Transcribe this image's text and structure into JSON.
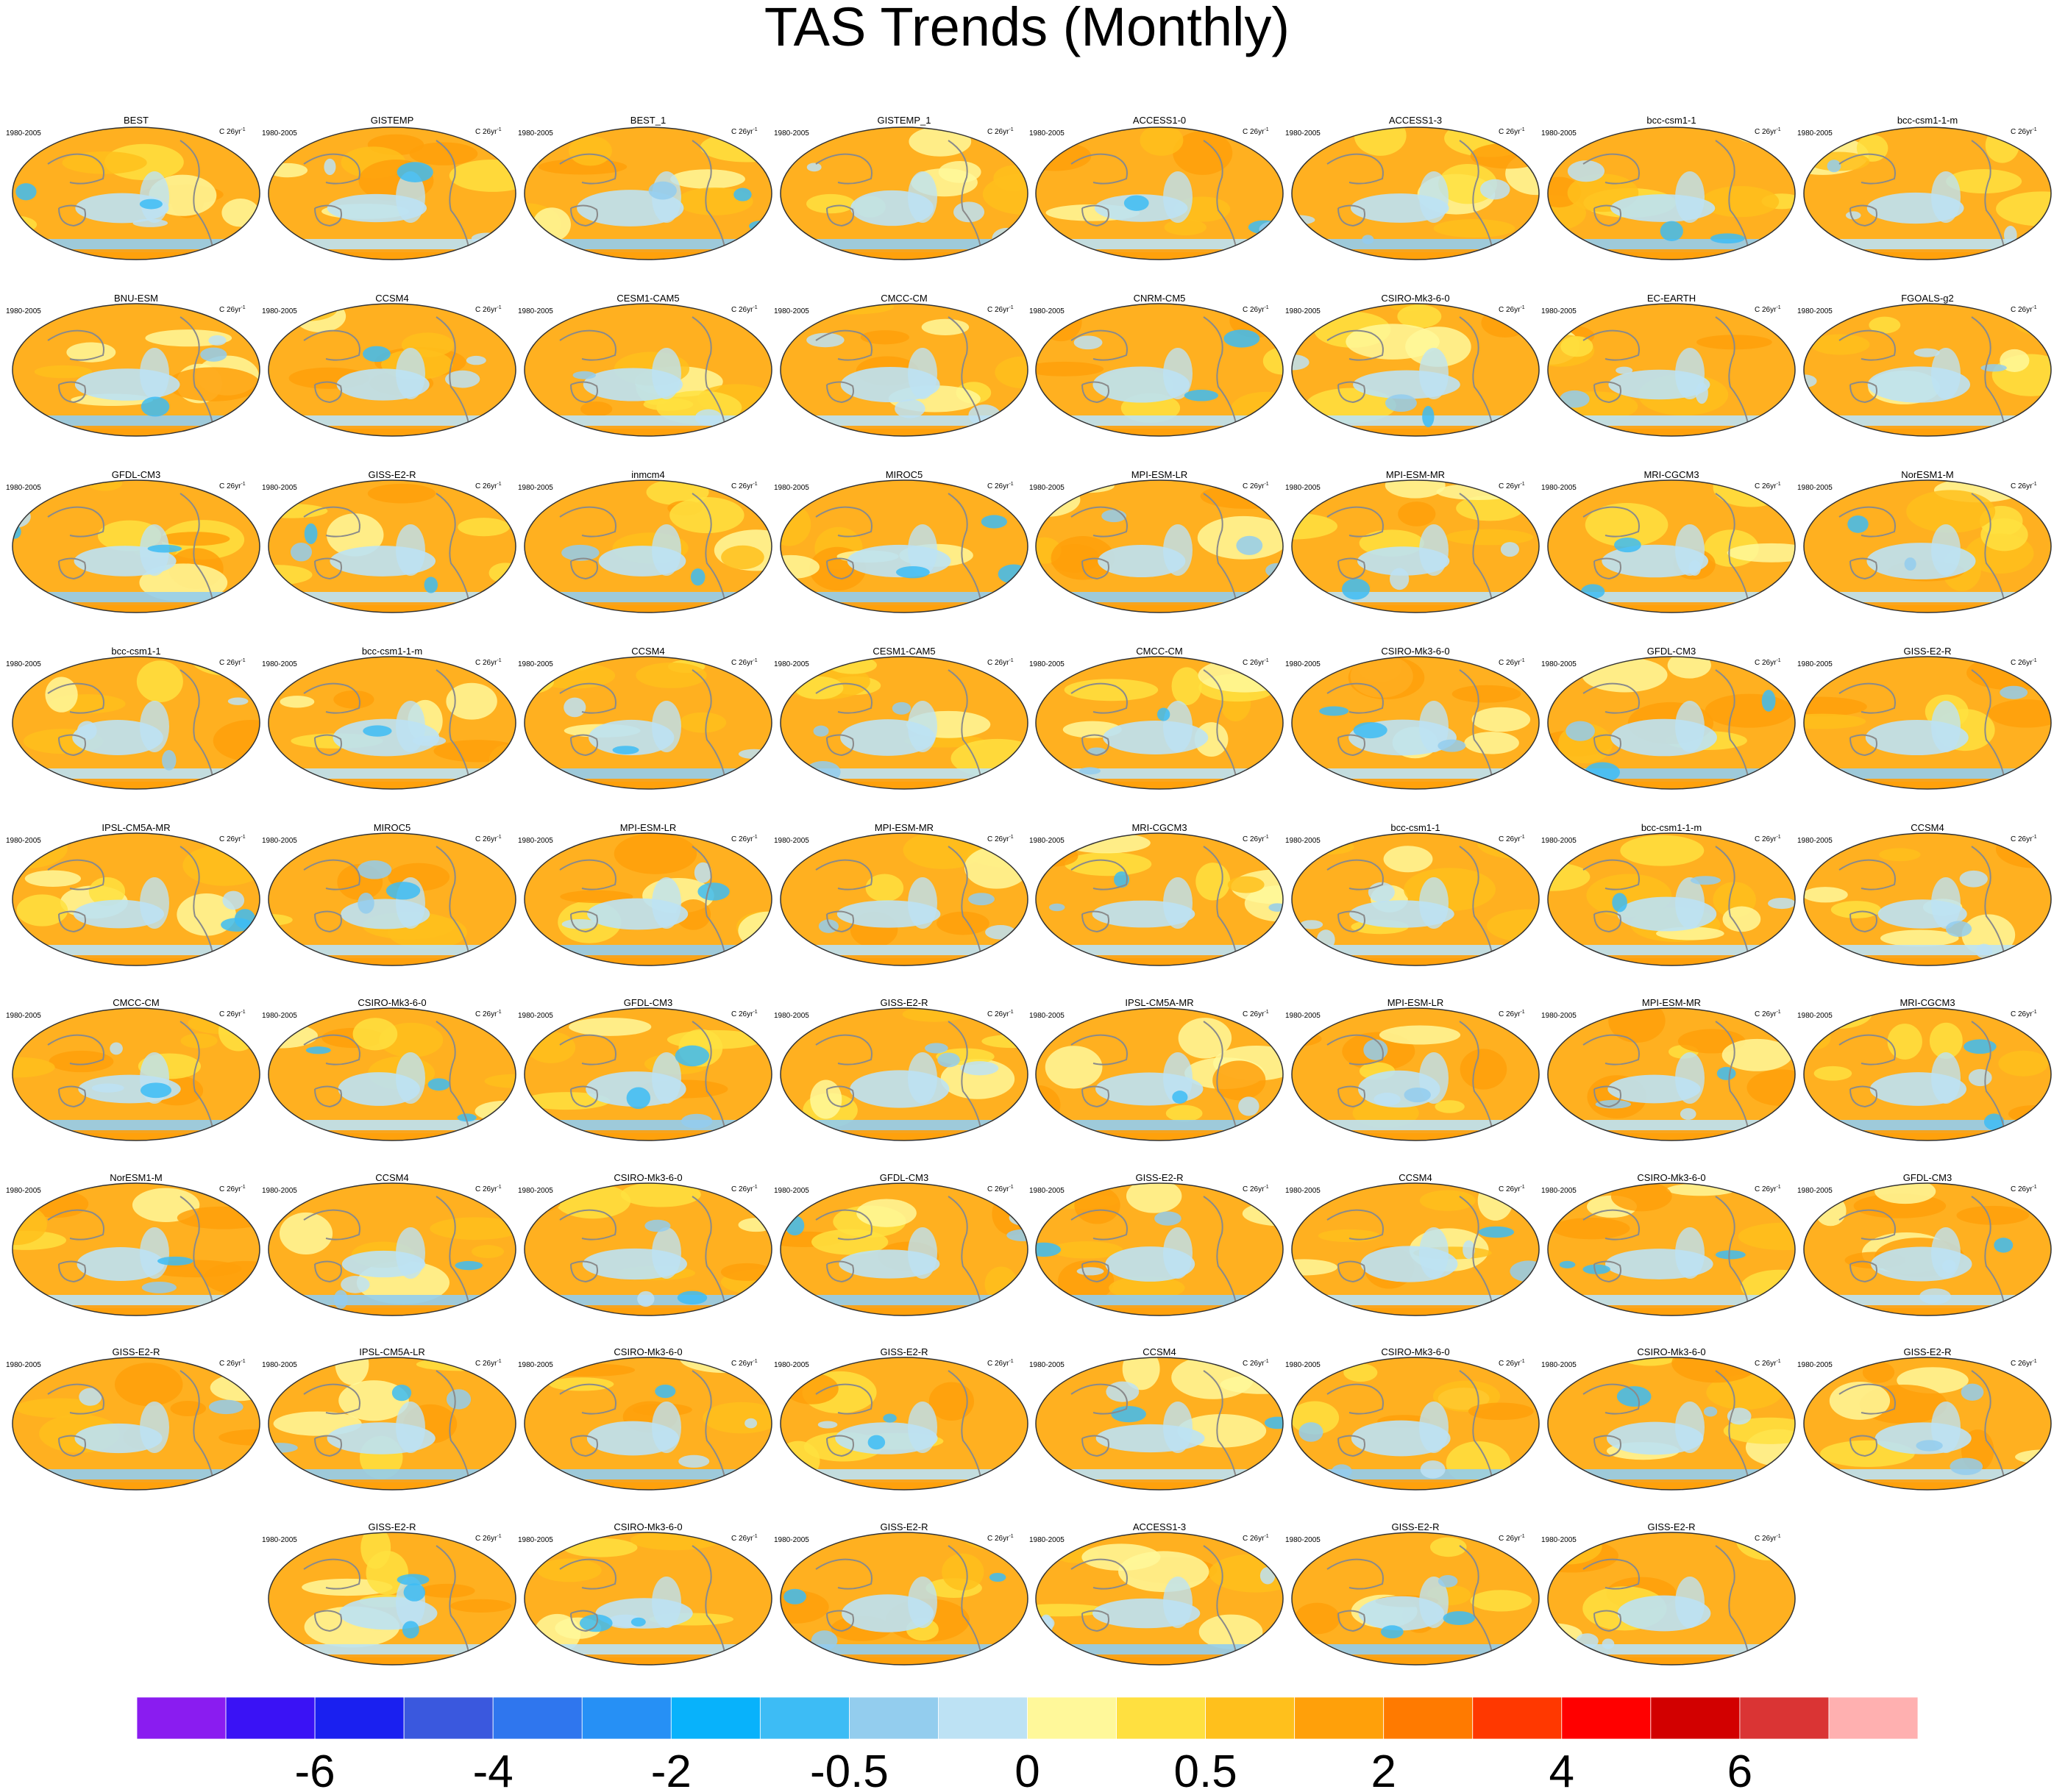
{
  "chart_data": {
    "type": "heatmap",
    "title": "TAS Trends (Monthly)",
    "panel_period": "1980-2005",
    "panel_units": "C 26yr",
    "panel_units_sup": "-1",
    "panels": [
      "BEST",
      "GISTEMP",
      "BEST_1",
      "GISTEMP_1",
      "ACCESS1-0",
      "ACCESS1-3",
      "bcc-csm1-1",
      "bcc-csm1-1-m",
      "BNU-ESM",
      "CCSM4",
      "CESM1-CAM5",
      "CMCC-CM",
      "CNRM-CM5",
      "CSIRO-Mk3-6-0",
      "EC-EARTH",
      "FGOALS-g2",
      "GFDL-CM3",
      "GISS-E2-R",
      "inmcm4",
      "MIROC5",
      "MPI-ESM-LR",
      "MPI-ESM-MR",
      "MRI-CGCM3",
      "NorESM1-M",
      "bcc-csm1-1",
      "bcc-csm1-1-m",
      "CCSM4",
      "CESM1-CAM5",
      "CMCC-CM",
      "CSIRO-Mk3-6-0",
      "GFDL-CM3",
      "GISS-E2-R",
      "IPSL-CM5A-MR",
      "MIROC5",
      "MPI-ESM-LR",
      "MPI-ESM-MR",
      "MRI-CGCM3",
      "bcc-csm1-1",
      "bcc-csm1-1-m",
      "CCSM4",
      "CMCC-CM",
      "CSIRO-Mk3-6-0",
      "GFDL-CM3",
      "GISS-E2-R",
      "IPSL-CM5A-MR",
      "MPI-ESM-LR",
      "MPI-ESM-MR",
      "MRI-CGCM3",
      "NorESM1-M",
      "CCSM4",
      "CSIRO-Mk3-6-0",
      "GFDL-CM3",
      "GISS-E2-R",
      "CCSM4",
      "CSIRO-Mk3-6-0",
      "GFDL-CM3",
      "GISS-E2-R",
      "IPSL-CM5A-LR",
      "CSIRO-Mk3-6-0",
      "GISS-E2-R",
      "CCSM4",
      "CSIRO-Mk3-6-0",
      "CSIRO-Mk3-6-0",
      "GISS-E2-R",
      "GISS-E2-R",
      "CSIRO-Mk3-6-0",
      "GISS-E2-R",
      "ACCESS1-3",
      "GISS-E2-R",
      "GISS-E2-R"
    ],
    "colorbar": {
      "colors": [
        "#8a1cf0",
        "#3a12f5",
        "#1a20f0",
        "#3a58de",
        "#2f76ee",
        "#2690f5",
        "#08b2fb",
        "#3dbcf5",
        "#93cdee",
        "#bde2f4",
        "#fff89a",
        "#ffe040",
        "#ffc01c",
        "#ffa00a",
        "#ff7a00",
        "#ff3800",
        "#ff0000",
        "#d20000",
        "#da3434",
        "#ffb0b0"
      ],
      "tick_labels": [
        "-6",
        "-4",
        "-2",
        "-0.5",
        "0",
        "0.5",
        "2",
        "4",
        "6"
      ]
    }
  }
}
